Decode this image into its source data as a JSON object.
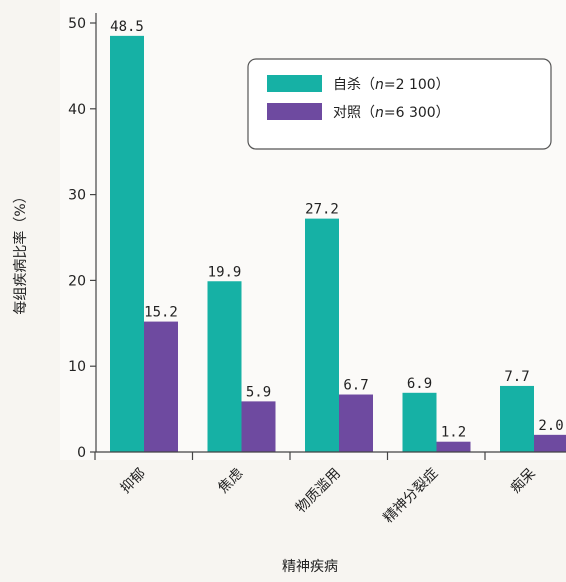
{
  "chart_data": {
    "type": "bar",
    "title": "",
    "xlabel": "精神疾病",
    "ylabel": "每组疾病比率（%）",
    "ylim": [
      0,
      50
    ],
    "yticks": [
      0,
      10,
      20,
      30,
      40,
      50
    ],
    "grid": false,
    "legend_position": "top-right",
    "categories": [
      "抑郁",
      "焦虑",
      "物质滥用",
      "精神分裂症",
      "痴呆"
    ],
    "series": [
      {
        "name": "自杀（n=2 100）",
        "name_parts": [
          "自杀（",
          "n",
          "=2 100）"
        ],
        "color": "#16b1a5",
        "values": [
          48.5,
          19.9,
          27.2,
          6.9,
          7.7
        ],
        "labels": [
          "48.5",
          "19.9",
          "27.2",
          "6.9",
          "7.7"
        ]
      },
      {
        "name": "对照（n=6 300）",
        "name_parts": [
          "对照（",
          "n",
          "=6 300）"
        ],
        "color": "#6e4aa0",
        "values": [
          15.2,
          5.9,
          6.7,
          1.2,
          2.0
        ],
        "labels": [
          "15.2",
          "5.9",
          "6.7",
          "1.2",
          "2.0"
        ]
      }
    ]
  }
}
